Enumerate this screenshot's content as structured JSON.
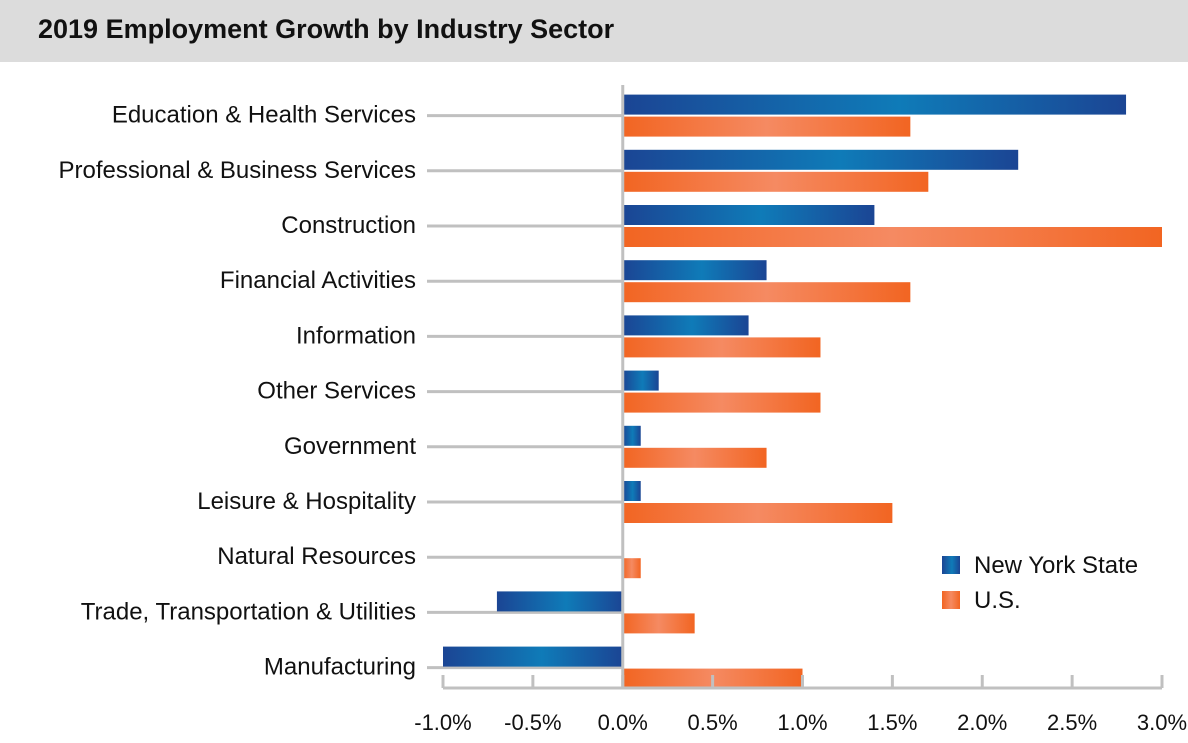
{
  "chart_data": {
    "type": "bar",
    "orientation": "horizontal",
    "title": "2019 Employment Growth by Industry Sector",
    "xlabel": "",
    "ylabel": "",
    "categories": [
      "Education & Health Services",
      "Professional & Business Services",
      "Construction",
      "Financial Activities",
      "Information",
      "Other Services",
      "Government",
      "Leisure & Hospitality",
      "Natural Resources",
      "Trade, Transportation & Utilities",
      "Manufacturing"
    ],
    "series": [
      {
        "name": "New York State",
        "color": "#1a4b96",
        "values": [
          2.8,
          2.2,
          1.4,
          0.8,
          0.7,
          0.2,
          0.1,
          0.1,
          0.0,
          -0.7,
          -1.0
        ]
      },
      {
        "name": "U.S.",
        "color": "#f26522",
        "values": [
          1.6,
          1.7,
          3.0,
          1.6,
          1.1,
          1.1,
          0.8,
          1.5,
          0.1,
          0.4,
          1.0
        ]
      }
    ],
    "xlim": [
      -1.0,
      3.0
    ],
    "xticks": [
      -1.0,
      -0.5,
      0.0,
      0.5,
      1.0,
      1.5,
      2.0,
      2.5,
      3.0
    ],
    "xtick_labels": [
      "-1.0%",
      "-0.5%",
      "0.0%",
      "0.5%",
      "1.0%",
      "1.5%",
      "2.0%",
      "2.5%",
      "3.0%"
    ],
    "grid": false,
    "legend_position": "bottom-right"
  }
}
